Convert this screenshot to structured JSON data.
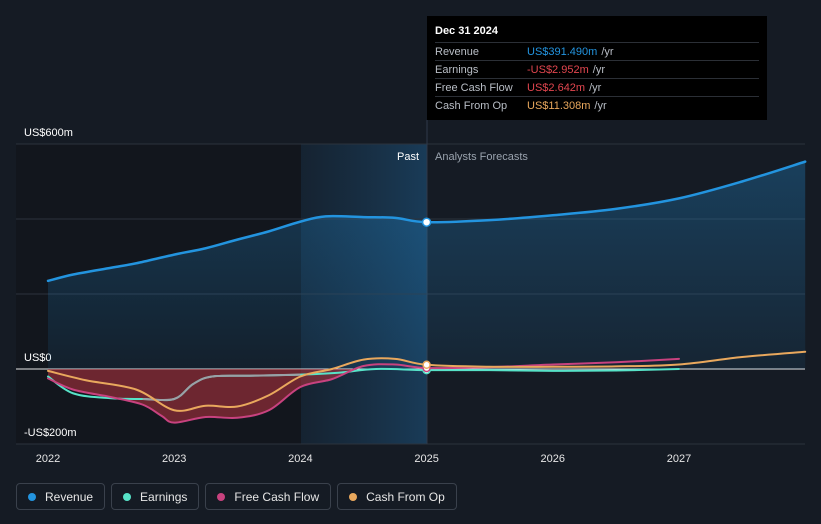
{
  "chart_data": {
    "type": "line",
    "x_ticks": [
      "2022",
      "2023",
      "2024",
      "2025",
      "2026",
      "2027"
    ],
    "y_labels": [
      "US$600m",
      "US$0",
      "-US$200m"
    ],
    "ylim": [
      -200,
      600
    ],
    "region_labels": {
      "past": "Past",
      "forecast": "Analysts Forecasts"
    },
    "series": [
      {
        "name": "Revenue",
        "color": "#2394df",
        "fill": true,
        "points": [
          [
            2022.0,
            235
          ],
          [
            2022.2,
            252
          ],
          [
            2022.5,
            270
          ],
          [
            2022.7,
            282
          ],
          [
            2023.0,
            305
          ],
          [
            2023.25,
            322
          ],
          [
            2023.5,
            345
          ],
          [
            2023.75,
            367
          ],
          [
            2024.0,
            393
          ],
          [
            2024.2,
            407
          ],
          [
            2024.5,
            405
          ],
          [
            2024.75,
            403
          ],
          [
            2025.0,
            391.49
          ],
          [
            2025.5,
            397
          ],
          [
            2026.0,
            410
          ],
          [
            2026.5,
            427
          ],
          [
            2027.0,
            455
          ],
          [
            2027.5,
            500
          ],
          [
            2028.0,
            553
          ]
        ]
      },
      {
        "name": "Earnings",
        "color": "#57e3c8",
        "points": [
          [
            2022.0,
            -20
          ],
          [
            2022.2,
            -65
          ],
          [
            2022.5,
            -78
          ],
          [
            2022.75,
            -80
          ],
          [
            2023.0,
            -80
          ],
          [
            2023.15,
            -40
          ],
          [
            2023.3,
            -20
          ],
          [
            2023.6,
            -18
          ],
          [
            2024.0,
            -15
          ],
          [
            2024.3,
            -10
          ],
          [
            2024.6,
            0
          ],
          [
            2025.0,
            -2.952
          ],
          [
            2025.5,
            -3
          ],
          [
            2026.0,
            -5
          ],
          [
            2026.5,
            -4
          ],
          [
            2027.0,
            0
          ]
        ]
      },
      {
        "name": "Free Cash Flow",
        "color": "#c8427f",
        "points": [
          [
            2022.0,
            -25
          ],
          [
            2022.2,
            -55
          ],
          [
            2022.5,
            -75
          ],
          [
            2022.75,
            -95
          ],
          [
            2022.9,
            -125
          ],
          [
            2023.0,
            -143
          ],
          [
            2023.25,
            -128
          ],
          [
            2023.5,
            -130
          ],
          [
            2023.75,
            -110
          ],
          [
            2024.0,
            -48
          ],
          [
            2024.25,
            -27
          ],
          [
            2024.5,
            8
          ],
          [
            2024.75,
            12
          ],
          [
            2025.0,
            2.642
          ],
          [
            2025.5,
            5
          ],
          [
            2026.0,
            12
          ],
          [
            2026.5,
            18
          ],
          [
            2027.0,
            27
          ]
        ]
      },
      {
        "name": "Cash From Op",
        "color": "#e9a85d",
        "points": [
          [
            2022.0,
            -5
          ],
          [
            2022.3,
            -30
          ],
          [
            2022.7,
            -55
          ],
          [
            2023.0,
            -110
          ],
          [
            2023.25,
            -98
          ],
          [
            2023.5,
            -100
          ],
          [
            2023.75,
            -70
          ],
          [
            2024.0,
            -20
          ],
          [
            2024.25,
            0
          ],
          [
            2024.5,
            25
          ],
          [
            2024.75,
            27
          ],
          [
            2025.0,
            11.308
          ],
          [
            2025.5,
            6
          ],
          [
            2026.0,
            6
          ],
          [
            2026.5,
            7
          ],
          [
            2027.0,
            12
          ],
          [
            2027.5,
            32
          ],
          [
            2028.0,
            46
          ]
        ]
      }
    ],
    "marker_x": 2025.0
  },
  "tooltip": {
    "date": "Dec 31 2024",
    "rows": [
      {
        "label": "Revenue",
        "value": "US$391.490m",
        "unit": "/yr",
        "color": "#2394df"
      },
      {
        "label": "Earnings",
        "value": "-US$2.952m",
        "unit": "/yr",
        "color": "#e2464f"
      },
      {
        "label": "Free Cash Flow",
        "value": "US$2.642m",
        "unit": "/yr",
        "color": "#e2464f"
      },
      {
        "label": "Cash From Op",
        "value": "US$11.308m",
        "unit": "/yr",
        "color": "#e9a85d"
      }
    ]
  },
  "legend": [
    {
      "label": "Revenue",
      "color": "#2394df"
    },
    {
      "label": "Earnings",
      "color": "#57e3c8"
    },
    {
      "label": "Free Cash Flow",
      "color": "#c8427f"
    },
    {
      "label": "Cash From Op",
      "color": "#e9a85d"
    }
  ]
}
